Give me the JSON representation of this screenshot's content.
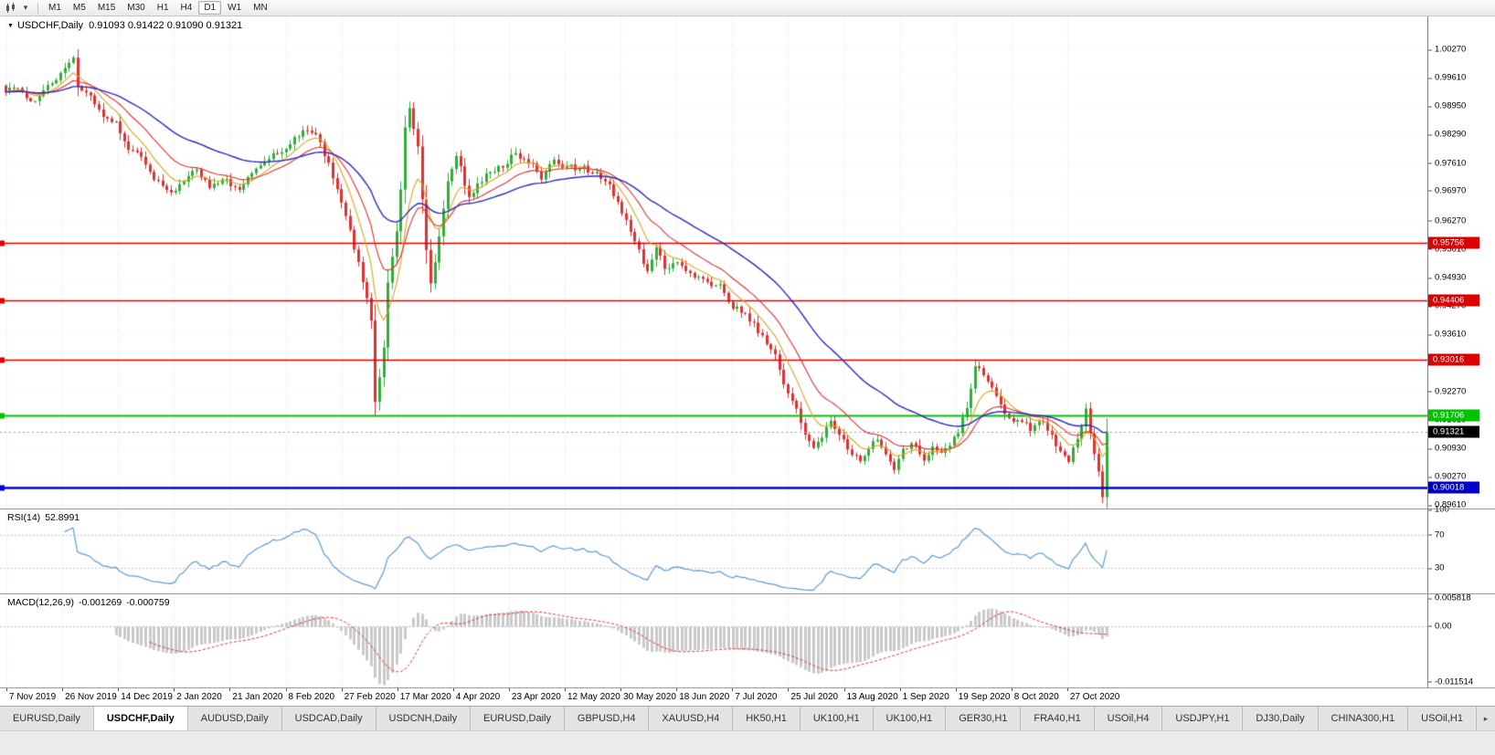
{
  "toolbar": {
    "timeframes": [
      {
        "label": "M1"
      },
      {
        "label": "M5"
      },
      {
        "label": "M15"
      },
      {
        "label": "M30"
      },
      {
        "label": "H1"
      },
      {
        "label": "H4"
      },
      {
        "label": "D1",
        "active": true
      },
      {
        "label": "W1"
      },
      {
        "label": "MN"
      }
    ]
  },
  "chart": {
    "title": "USDCHF,Daily",
    "ohlc_text": "0.91093 0.91422 0.91090 0.91321"
  },
  "chart_data": {
    "type": "candlestick",
    "symbol": "USDCHF",
    "timeframe": "Daily",
    "last": {
      "open": 0.91093,
      "high": 0.91422,
      "low": 0.9109,
      "close": 0.91321
    },
    "n_candles": 260,
    "price_top": 1.0105,
    "price_bottom": 0.8953,
    "y_ticks": [
      {
        "label": "1.00270",
        "value": 1.0027
      },
      {
        "label": "0.99610",
        "value": 0.9961
      },
      {
        "label": "0.98950",
        "value": 0.9895
      },
      {
        "label": "0.98290",
        "value": 0.9829
      },
      {
        "label": "0.97610",
        "value": 0.9761
      },
      {
        "label": "0.96970",
        "value": 0.9697
      },
      {
        "label": "0.96270",
        "value": 0.9627
      },
      {
        "label": "0.95610",
        "value": 0.9561
      },
      {
        "label": "0.94930",
        "value": 0.9493
      },
      {
        "label": "0.94270",
        "value": 0.9427
      },
      {
        "label": "0.93610",
        "value": 0.9361
      },
      {
        "label": "0.92930",
        "value": 0.9293
      },
      {
        "label": "0.92270",
        "value": 0.9227
      },
      {
        "label": "0.91610",
        "value": 0.9161
      },
      {
        "label": "0.90930",
        "value": 0.9093
      },
      {
        "label": "0.90270",
        "value": 0.9027
      },
      {
        "label": "0.89610",
        "value": 0.8961
      }
    ],
    "x_labels": [
      "7 Nov 2019",
      "26 Nov 2019",
      "14 Dec 2019",
      "2 Jan 2020",
      "21 Jan 2020",
      "8 Feb 2020",
      "27 Feb 2020",
      "17 Mar 2020",
      "4 Apr 2020",
      "23 Apr 2020",
      "12 May 2020",
      "30 May 2020",
      "18 Jun 2020",
      "7 Jul 2020",
      "25 Jul 2020",
      "13 Aug 2020",
      "1 Sep 2020",
      "19 Sep 2020",
      "8 Oct 2020",
      "27 Oct 2020"
    ],
    "hlines": [
      {
        "price": 0.95756,
        "badge": "0.95756",
        "color": "#dd0000",
        "width": 1.4
      },
      {
        "price": 0.94406,
        "badge": "0.94406",
        "color": "#dd0000",
        "width": 1.4
      },
      {
        "price": 0.93016,
        "badge": "0.93016",
        "color": "#dd0000",
        "width": 1.4
      },
      {
        "price": 0.91706,
        "badge": "0.91706",
        "color": "#00c400",
        "width": 2
      },
      {
        "price": 0.90018,
        "badge": "0.90018",
        "color": "#0000cc",
        "width": 2.4
      }
    ],
    "current_price": {
      "value": 0.91321,
      "badge": "0.91321",
      "color": "#000000"
    },
    "colors": {
      "up": "#2fae3a",
      "down": "#e03131",
      "ma_fast": "#d9a521",
      "ma_mid": "#e03131",
      "ma_slow": "#2a2ac4"
    },
    "close_waypoints": [
      [
        0,
        0.993
      ],
      [
        3,
        0.9938
      ],
      [
        6,
        0.9905
      ],
      [
        10,
        0.9942
      ],
      [
        13,
        0.9972
      ],
      [
        15,
        0.9995
      ],
      [
        16,
        1.001
      ],
      [
        17,
        0.994
      ],
      [
        19,
        0.9928
      ],
      [
        23,
        0.9868
      ],
      [
        26,
        0.9858
      ],
      [
        29,
        0.9792
      ],
      [
        32,
        0.9775
      ],
      [
        35,
        0.9722
      ],
      [
        39,
        0.9695
      ],
      [
        42,
        0.9716
      ],
      [
        45,
        0.9745
      ],
      [
        48,
        0.9705
      ],
      [
        52,
        0.9722
      ],
      [
        55,
        0.97
      ],
      [
        58,
        0.9736
      ],
      [
        61,
        0.9765
      ],
      [
        66,
        0.9796
      ],
      [
        70,
        0.984
      ],
      [
        73,
        0.983
      ],
      [
        76,
        0.9762
      ],
      [
        80,
        0.9636
      ],
      [
        83,
        0.953
      ],
      [
        86,
        0.9395
      ],
      [
        87,
        0.9205
      ],
      [
        88,
        0.926
      ],
      [
        89,
        0.933
      ],
      [
        90,
        0.948
      ],
      [
        92,
        0.96
      ],
      [
        93,
        0.97
      ],
      [
        94,
        0.9845
      ],
      [
        95,
        0.989
      ],
      [
        97,
        0.98
      ],
      [
        99,
        0.956
      ],
      [
        100,
        0.948
      ],
      [
        102,
        0.959
      ],
      [
        104,
        0.972
      ],
      [
        106,
        0.978
      ],
      [
        109,
        0.968
      ],
      [
        111,
        0.9716
      ],
      [
        114,
        0.974
      ],
      [
        117,
        0.9752
      ],
      [
        120,
        0.9786
      ],
      [
        124,
        0.9762
      ],
      [
        126,
        0.9722
      ],
      [
        129,
        0.977
      ],
      [
        132,
        0.9752
      ],
      [
        135,
        0.975
      ],
      [
        139,
        0.9742
      ],
      [
        142,
        0.9712
      ],
      [
        145,
        0.9645
      ],
      [
        148,
        0.958
      ],
      [
        151,
        0.951
      ],
      [
        153,
        0.9565
      ],
      [
        155,
        0.9512
      ],
      [
        158,
        0.953
      ],
      [
        161,
        0.9506
      ],
      [
        165,
        0.9482
      ],
      [
        168,
        0.9476
      ],
      [
        170,
        0.9436
      ],
      [
        173,
        0.941
      ],
      [
        176,
        0.9386
      ],
      [
        179,
        0.934
      ],
      [
        181,
        0.9312
      ],
      [
        183,
        0.9242
      ],
      [
        186,
        0.9186
      ],
      [
        188,
        0.9126
      ],
      [
        190,
        0.9096
      ],
      [
        192,
        0.912
      ],
      [
        194,
        0.9156
      ],
      [
        196,
        0.9126
      ],
      [
        198,
        0.9092
      ],
      [
        201,
        0.9066
      ],
      [
        203,
        0.9092
      ],
      [
        205,
        0.9116
      ],
      [
        207,
        0.9082
      ],
      [
        209,
        0.9042
      ],
      [
        211,
        0.9092
      ],
      [
        213,
        0.9106
      ],
      [
        216,
        0.9066
      ],
      [
        218,
        0.9096
      ],
      [
        220,
        0.9082
      ],
      [
        222,
        0.91
      ],
      [
        224,
        0.913
      ],
      [
        226,
        0.919
      ],
      [
        228,
        0.9286
      ],
      [
        231,
        0.9252
      ],
      [
        233,
        0.9216
      ],
      [
        235,
        0.9176
      ],
      [
        237,
        0.9156
      ],
      [
        239,
        0.9158
      ],
      [
        241,
        0.9136
      ],
      [
        244,
        0.9158
      ],
      [
        246,
        0.9126
      ],
      [
        248,
        0.9086
      ],
      [
        250,
        0.906
      ],
      [
        252,
        0.9116
      ],
      [
        254,
        0.9186
      ],
      [
        255,
        0.9126
      ],
      [
        257,
        0.904
      ],
      [
        258,
        0.8982
      ],
      [
        259,
        0.91321
      ]
    ]
  },
  "rsi": {
    "label": "RSI(14)",
    "value": "52.8991",
    "color": "#5b9bd5",
    "levels": [
      70,
      30
    ],
    "scale": [
      {
        "text": "100",
        "v": 100
      },
      {
        "text": "70",
        "v": 70
      },
      {
        "text": "30",
        "v": 30
      }
    ]
  },
  "macd": {
    "label": "MACD(12,26,9)",
    "value1": "-0.001269",
    "value2": "-0.000759",
    "range_min": -0.0127,
    "range_max": 0.0066,
    "scale": [
      {
        "text": "0.005818",
        "v": 0.005818
      },
      {
        "text": "0.00",
        "v": 0
      },
      {
        "text": "-0.011514",
        "v": -0.011514
      }
    ]
  },
  "tabs": {
    "items": [
      {
        "label": "EURUSD,Daily"
      },
      {
        "label": "USDCHF,Daily",
        "active": true
      },
      {
        "label": "AUDUSD,Daily"
      },
      {
        "label": "USDCAD,Daily"
      },
      {
        "label": "USDCNH,Daily"
      },
      {
        "label": "EURUSD,Daily"
      },
      {
        "label": "GBPUSD,H4"
      },
      {
        "label": "XAUUSD,H4"
      },
      {
        "label": "HK50,H1"
      },
      {
        "label": "UK100,H1"
      },
      {
        "label": "UK100,H1"
      },
      {
        "label": "GER30,H1"
      },
      {
        "label": "FRA40,H1"
      },
      {
        "label": "USOil,H4"
      },
      {
        "label": "USDJPY,H1"
      },
      {
        "label": "DJ30,Daily"
      },
      {
        "label": "CHINA300,H1"
      },
      {
        "label": "USOil,H1"
      }
    ]
  }
}
